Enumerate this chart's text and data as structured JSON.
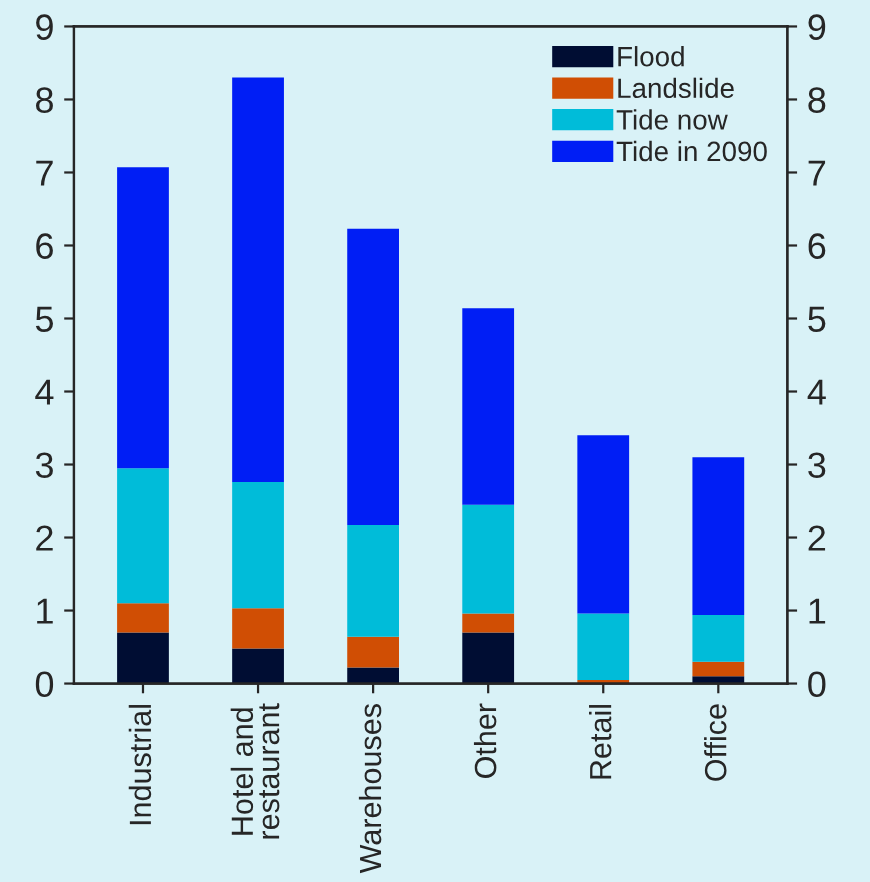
{
  "chart_data": {
    "type": "bar",
    "stacked": true,
    "categories": [
      "Industrial",
      "Hotel and\nrestaurant",
      "Warehouses",
      "Other",
      "Retail",
      "Office"
    ],
    "series": [
      {
        "name": "Flood",
        "color": "#000d33",
        "values": [
          0.7,
          0.48,
          0.22,
          0.7,
          null,
          0.1
        ]
      },
      {
        "name": "Landslide",
        "color": "#d04e04",
        "values": [
          0.4,
          0.55,
          0.42,
          0.26,
          0.05,
          0.2
        ]
      },
      {
        "name": "Tide now",
        "color": "#00bcd9",
        "values": [
          1.85,
          1.73,
          1.53,
          1.49,
          0.91,
          0.64
        ]
      },
      {
        "name": "Tide in 2090",
        "color": "#001ef5",
        "values": [
          4.12,
          5.54,
          4.06,
          2.69,
          2.44,
          2.16
        ]
      }
    ],
    "ylim": [
      0,
      9
    ],
    "yticks": [
      0,
      1,
      2,
      3,
      4,
      5,
      6,
      7,
      8,
      9
    ],
    "y2lim": [
      0,
      9
    ],
    "y2ticks": [
      0,
      1,
      2,
      3,
      4,
      5,
      6,
      7,
      8,
      9
    ],
    "grid": false,
    "legend": "top right"
  }
}
